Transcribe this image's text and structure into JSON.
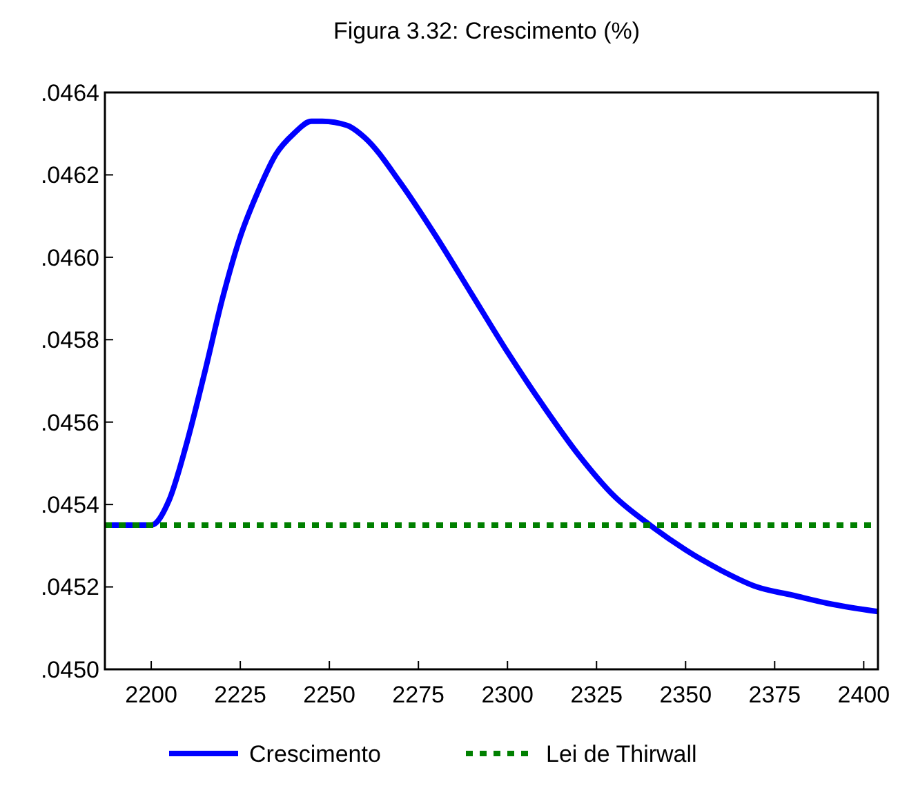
{
  "chart_data": {
    "type": "line",
    "title": "Figura 3.32: Crescimento (%)",
    "xlim": [
      2187,
      2404
    ],
    "xticks": [
      2200,
      2225,
      2250,
      2275,
      2300,
      2325,
      2350,
      2375,
      2400
    ],
    "ylim": [
      0.045,
      0.0464
    ],
    "yticks": [
      {
        "value": 0.045,
        "label": ".0450"
      },
      {
        "value": 0.0452,
        "label": ".0452"
      },
      {
        "value": 0.0454,
        "label": ".0454"
      },
      {
        "value": 0.0456,
        "label": ".0456"
      },
      {
        "value": 0.0458,
        "label": ".0458"
      },
      {
        "value": 0.046,
        "label": ".0460"
      },
      {
        "value": 0.0462,
        "label": ".0462"
      },
      {
        "value": 0.0464,
        "label": ".0464"
      }
    ],
    "legend": "bottom",
    "grid": false,
    "series": [
      {
        "name": "Crescimento",
        "color": "#0000ff",
        "line_style": "solid",
        "x": [
          2187,
          2200,
          2205,
          2210,
          2215,
          2220,
          2225,
          2230,
          2235,
          2240,
          2245,
          2248,
          2255,
          2260,
          2270,
          2280,
          2290,
          2300,
          2310,
          2320,
          2330,
          2340,
          2350,
          2360,
          2370,
          2380,
          2390,
          2404
        ],
        "values": [
          0.04535,
          0.04535,
          0.04541,
          0.04555,
          0.04572,
          0.0459,
          0.04605,
          0.04616,
          0.04625,
          0.0463,
          0.04633,
          0.04633,
          0.04632,
          0.04629,
          0.04618,
          0.04605,
          0.04591,
          0.04577,
          0.04564,
          0.04552,
          0.04542,
          0.04535,
          0.04529,
          0.04524,
          0.0452,
          0.04518,
          0.04516,
          0.04514
        ]
      },
      {
        "name": "Lei de Thirwall",
        "color": "#008000",
        "line_style": "dotted",
        "x": [
          2187,
          2404
        ],
        "values": [
          0.04535,
          0.04535
        ]
      }
    ]
  }
}
